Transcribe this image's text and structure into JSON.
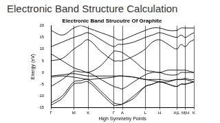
{
  "slide": {
    "title": "Electronic Band Structure Calculation"
  },
  "chart_data": {
    "type": "line",
    "title": "Electronic Band Strucutre Of Graphite",
    "x_label": "High Symmetry Points",
    "y_label": "Energy (eV)",
    "x": [
      0,
      0.8,
      1.6,
      2.1,
      2.6,
      3.5,
      4.4,
      4.7,
      5.0,
      5.8,
      6.6,
      7.1,
      7.6,
      8.2,
      8.8,
      9.1,
      9.4,
      9.7,
      10
    ],
    "series": [
      {
        "color": "#000000",
        "values": [
          -14,
          -11,
          -5,
          -4.5,
          -4,
          -9,
          -14,
          -14,
          -13.5,
          -11,
          -6,
          -5,
          -4,
          -5,
          -6,
          -5,
          -5,
          -4.5,
          -4
        ]
      },
      {
        "color": "#000000",
        "values": [
          -13,
          -10,
          -4,
          -3.5,
          -3,
          -8,
          -13,
          -13.5,
          -13.5,
          -10,
          -6,
          -5,
          -4,
          -5,
          -6,
          -5,
          -5,
          -4.5,
          -4
        ]
      },
      {
        "color": "#000000",
        "values": [
          -2,
          -1.5,
          -2,
          -2.5,
          -3,
          -2.5,
          -2,
          -1.5,
          -1.5,
          -2,
          -3,
          -3.5,
          -4,
          -4,
          -3,
          -3,
          -3,
          -3.5,
          -4
        ]
      },
      {
        "color": "#000000",
        "values": [
          -1.5,
          -1,
          -0.5,
          -1,
          -1.5,
          -1.5,
          -1.5,
          -1.5,
          -1.5,
          -2,
          -3,
          -3,
          -3,
          -3.5,
          -3,
          -3,
          -2.5,
          -3,
          -3
        ]
      },
      {
        "color": "#000000",
        "values": [
          -6,
          -3,
          0.5,
          0.2,
          0,
          -3,
          -6,
          -6.5,
          -7,
          -4,
          -1,
          0,
          0,
          -1,
          -1,
          0,
          0,
          0,
          0
        ]
      },
      {
        "color": "#000000",
        "values": [
          8,
          5,
          2,
          1,
          0,
          3,
          9,
          9,
          8.5,
          5,
          1,
          0.5,
          0,
          1,
          1,
          1,
          1,
          0.5,
          0
        ]
      },
      {
        "color": "#000000",
        "values": [
          5,
          6,
          10,
          12,
          14,
          9,
          5,
          5,
          5,
          7,
          10,
          13,
          14,
          12,
          10,
          12,
          11,
          13,
          14
        ]
      },
      {
        "color": "#000000",
        "values": [
          11,
          13,
          15,
          16,
          17,
          14,
          11,
          12,
          12,
          13,
          15,
          16,
          17,
          16,
          15,
          16,
          15,
          16,
          17
        ]
      },
      {
        "color": "#000000",
        "values": [
          18,
          16,
          19,
          20,
          19,
          17,
          15,
          14,
          14,
          16,
          18,
          19,
          19,
          18,
          18,
          19,
          19,
          19,
          19
        ]
      }
    ],
    "xlim": [
      0,
      10
    ],
    "xticks": [
      {
        "value": 0,
        "label": "Γ"
      },
      {
        "value": 1.6,
        "label": "M"
      },
      {
        "value": 2.6,
        "label": "K"
      },
      {
        "value": 4.4,
        "label": "Γ"
      },
      {
        "value": 5.0,
        "label": "A"
      },
      {
        "value": 6.6,
        "label": "L"
      },
      {
        "value": 7.6,
        "label": "H"
      },
      {
        "value": 8.8,
        "label": "A|L"
      },
      {
        "value": 9.4,
        "label": "M|H"
      },
      {
        "value": 10,
        "label": "K"
      }
    ],
    "ylim": [
      -15,
      20
    ],
    "yticks": [
      -15,
      -10,
      -5,
      0,
      5,
      10,
      15,
      20
    ],
    "grid": true
  }
}
